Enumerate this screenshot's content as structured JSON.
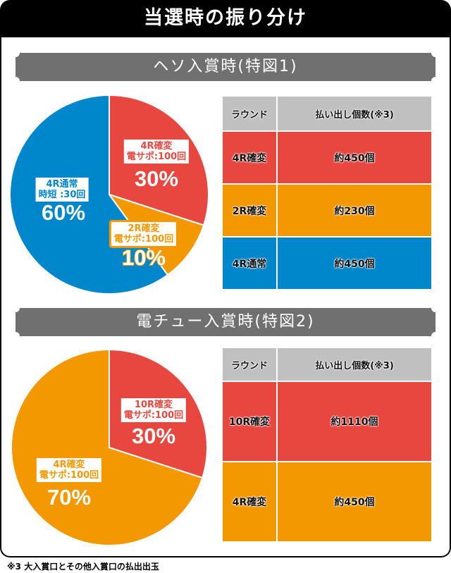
{
  "title": "当選時の振り分け",
  "footnote": "※3 大入賞口とその他入賞口の払出出玉",
  "colors": {
    "red": "#E8473F",
    "orange": "#F39800",
    "blue": "#0086CB",
    "banner": "#707070"
  },
  "sections": [
    {
      "heading": "ヘソ入賞時(特図1)",
      "table": {
        "headers": [
          "ラウンド",
          "払い出し個数(※3)"
        ],
        "rows": [
          {
            "round": "4R確変",
            "payout": "約450個",
            "color": "#E8473F"
          },
          {
            "round": "2R確変",
            "payout": "約230個",
            "color": "#F39800"
          },
          {
            "round": "4R通常",
            "payout": "約450個",
            "color": "#0086CB"
          }
        ]
      }
    },
    {
      "heading": "電チュー入賞時(特図2)",
      "table": {
        "headers": [
          "ラウンド",
          "払い出し個数(※3)"
        ],
        "rows": [
          {
            "round": "10R確変",
            "payout": "約1110個",
            "color": "#E8473F"
          },
          {
            "round": "4R確変",
            "payout": "約450個",
            "color": "#F39800"
          }
        ]
      }
    }
  ],
  "chart_data": [
    {
      "type": "pie",
      "title": "ヘソ入賞時(特図1)",
      "slices": [
        {
          "line1": "4R確変",
          "line2": "電サポ:100回",
          "value": 30,
          "pct_label": "30%",
          "color": "#E8473F"
        },
        {
          "line1": "2R確変",
          "line2": "電サポ:100回",
          "value": 10,
          "pct_label": "10%",
          "color": "#F39800"
        },
        {
          "line1": "4R通常",
          "line2": "時短 :30回",
          "value": 60,
          "pct_label": "60%",
          "color": "#0086CB"
        }
      ]
    },
    {
      "type": "pie",
      "title": "電チュー入賞時(特図2)",
      "slices": [
        {
          "line1": "10R確変",
          "line2": "電サポ:100回",
          "value": 30,
          "pct_label": "30%",
          "color": "#E8473F"
        },
        {
          "line1": "4R確変",
          "line2": "電サポ:100回",
          "value": 70,
          "pct_label": "70%",
          "color": "#F39800"
        }
      ]
    }
  ]
}
